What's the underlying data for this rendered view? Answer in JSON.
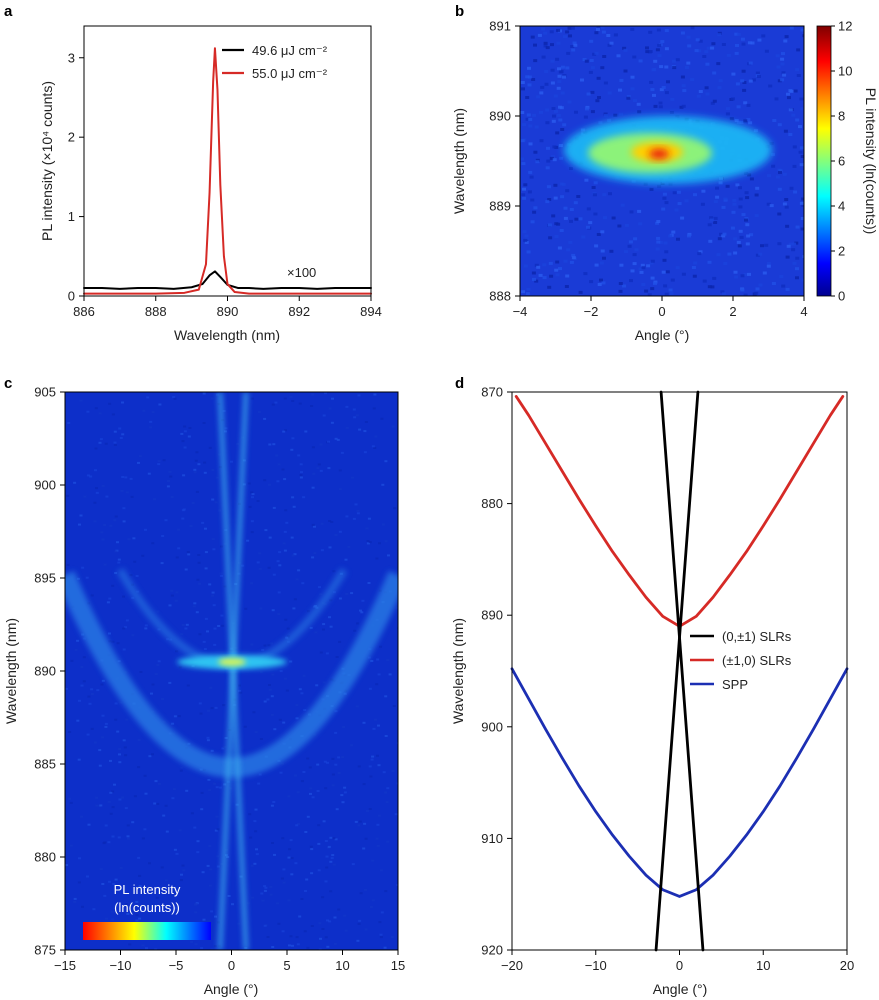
{
  "chart_data": [
    {
      "panel": "a",
      "type": "line",
      "xlabel": "Wavelength (nm)",
      "ylabel": "PL intensity (×10⁴ counts)",
      "xlim": [
        886,
        894
      ],
      "ylim": [
        0,
        3.4
      ],
      "xticks": [
        "886",
        "888",
        "890",
        "892",
        "894"
      ],
      "yticks": [
        "0",
        "1",
        "2",
        "3"
      ],
      "annotation": "×100",
      "legend": "top-right",
      "series": [
        {
          "name": "49.6 μJ cm⁻²",
          "color": "#000000",
          "x": [
            886.0,
            886.5,
            887.0,
            887.5,
            888.0,
            888.5,
            889.0,
            889.3,
            889.5,
            889.65,
            889.8,
            890.0,
            890.3,
            890.6,
            891.0,
            891.5,
            892.0,
            892.5,
            893.0,
            893.5,
            894.0
          ],
          "y": [
            0.1,
            0.1,
            0.09,
            0.1,
            0.1,
            0.09,
            0.11,
            0.15,
            0.26,
            0.31,
            0.24,
            0.14,
            0.1,
            0.1,
            0.09,
            0.1,
            0.1,
            0.09,
            0.1,
            0.1,
            0.1
          ]
        },
        {
          "name": "55.0 μJ cm⁻²",
          "color": "#d62a26",
          "x": [
            886.0,
            887.0,
            888.0,
            888.8,
            889.2,
            889.4,
            889.5,
            889.6,
            889.65,
            889.72,
            889.8,
            889.9,
            890.0,
            890.2,
            890.6,
            891.0,
            892.0,
            893.0,
            894.0
          ],
          "y": [
            0.03,
            0.03,
            0.03,
            0.04,
            0.08,
            0.4,
            1.3,
            2.7,
            3.12,
            2.6,
            1.4,
            0.5,
            0.15,
            0.05,
            0.03,
            0.03,
            0.03,
            0.03,
            0.03
          ]
        }
      ]
    },
    {
      "panel": "b",
      "type": "heatmap",
      "xlabel": "Angle (°)",
      "ylabel": "Wavelength (nm)",
      "xlim": [
        -4,
        4
      ],
      "ylim": [
        888,
        891
      ],
      "xticks": [
        "−4",
        "−2",
        "0",
        "2",
        "4"
      ],
      "yticks": [
        "888",
        "889",
        "890",
        "891"
      ],
      "colorbar": {
        "label": "PL intensity (ln(counts))",
        "range": [
          0,
          12
        ],
        "ticks": [
          "0",
          "2",
          "4",
          "6",
          "8",
          "10",
          "12"
        ]
      },
      "features": {
        "background": 1.5,
        "peak_angle": -0.2,
        "peak_wavelength": 889.45,
        "peak_value": 11
      }
    },
    {
      "panel": "c",
      "type": "heatmap",
      "xlabel": "Angle (°)",
      "ylabel": "Wavelength (nm)",
      "xlim": [
        -15,
        15
      ],
      "ylim": [
        875,
        905
      ],
      "xticks": [
        "−15",
        "−10",
        "−5",
        "0",
        "5",
        "10",
        "15"
      ],
      "yticks": [
        "875",
        "880",
        "885",
        "890",
        "895",
        "900",
        "905"
      ],
      "colorbar": {
        "label_line1": "PL intensity",
        "label_line2": "(ln(counts))"
      },
      "features": {
        "lasing_wavelength": 889.5,
        "lasing_angle": 0
      }
    },
    {
      "panel": "d",
      "type": "line",
      "xlabel": "Angle (°)",
      "ylabel": "Wavelength (nm)",
      "xlim": [
        -20,
        20
      ],
      "ylim": [
        870,
        920
      ],
      "y_inverted": true,
      "xticks": [
        "−20",
        "−10",
        "0",
        "10",
        "20"
      ],
      "yticks": [
        "870",
        "880",
        "890",
        "900",
        "910",
        "920"
      ],
      "legend": "right",
      "series": [
        {
          "name": "(0,±1) SLRs",
          "color": "#000000",
          "x": [
            -2.2,
            2.8
          ],
          "y": [
            870,
            920
          ]
        },
        {
          "name": "(0,±1) SLRs",
          "color": "#000000",
          "x": [
            2.2,
            -2.8
          ],
          "y": [
            870,
            920
          ]
        },
        {
          "name": "(±1,0) SLRs",
          "color": "#d62a26",
          "x": [
            -19.5,
            -18,
            -16,
            -14,
            -12,
            -10,
            -8,
            -6,
            -4,
            -2,
            0,
            2,
            4,
            6,
            8,
            10,
            12,
            14,
            16,
            18,
            19.5
          ],
          "y": [
            870.4,
            872.1,
            874.6,
            877.1,
            879.6,
            882.0,
            884.3,
            886.4,
            888.4,
            890.1,
            891.0,
            890.1,
            888.4,
            886.4,
            884.3,
            882.0,
            879.6,
            877.1,
            874.6,
            872.1,
            870.4
          ]
        },
        {
          "name": "SPP",
          "color": "#1c2fb3",
          "x": [
            -20,
            -18,
            -16,
            -14,
            -12,
            -10,
            -8,
            -6,
            -4,
            -2,
            0,
            2,
            4,
            6,
            8,
            10,
            12,
            14,
            16,
            18,
            20
          ],
          "y": [
            894.8,
            897.5,
            900.2,
            902.8,
            905.3,
            907.6,
            909.7,
            911.6,
            913.3,
            914.6,
            915.2,
            914.6,
            913.3,
            911.6,
            909.7,
            907.6,
            905.3,
            902.8,
            900.2,
            897.5,
            894.8
          ]
        }
      ]
    }
  ],
  "panel_letters": [
    "a",
    "b",
    "c",
    "d"
  ],
  "colors": {
    "jet_stops": [
      "#00008f",
      "#0000ff",
      "#0080ff",
      "#00ffff",
      "#80ff80",
      "#ffff00",
      "#ff8000",
      "#ff0000",
      "#800000"
    ]
  }
}
